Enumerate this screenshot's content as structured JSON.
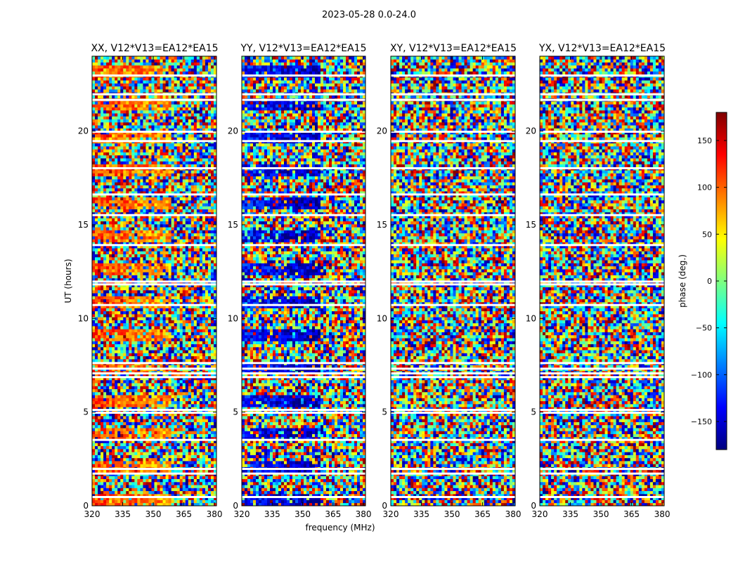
{
  "figure_title": "2023-05-28 0.0-24.0",
  "colors": {
    "colormap": [
      "#00007f",
      "#0000ff",
      "#007fff",
      "#00ffff",
      "#7fff7f",
      "#ffff00",
      "#ff7f00",
      "#ff0000",
      "#7f0000"
    ],
    "axis": "#000000",
    "gap": "#ffffff"
  },
  "chart_data": [
    {
      "type": "heatmap",
      "title": "XX, V12*V13=EA12*EA15",
      "xlabel": "",
      "ylabel": "UT (hours)",
      "xlim": [
        320,
        381
      ],
      "ylim": [
        0,
        24
      ],
      "xticks": [
        320,
        335,
        350,
        365,
        380
      ],
      "yticks": [
        0,
        5,
        10,
        15,
        20
      ],
      "texture_note": "low-freq coherent phase near +50..+150 deg (orange/yellow) in several bands; noisy elsewhere",
      "coherent_phase": 110
    },
    {
      "type": "heatmap",
      "title": "YY, V12*V13=EA12*EA15",
      "xlabel": "frequency (MHz)",
      "ylabel": "",
      "xlim": [
        320,
        381
      ],
      "ylim": [
        0,
        24
      ],
      "xticks": [
        320,
        335,
        350,
        365,
        380
      ],
      "yticks": [
        0,
        5,
        10,
        15,
        20
      ],
      "texture_note": "low-freq coherent phase near -130 deg (blue) in several bands; noisy elsewhere",
      "coherent_phase": -130
    },
    {
      "type": "heatmap",
      "title": "XY, V12*V13=EA12*EA15",
      "xlabel": "",
      "ylabel": "",
      "xlim": [
        320,
        381
      ],
      "ylim": [
        0,
        24
      ],
      "xticks": [
        320,
        335,
        350,
        365,
        380
      ],
      "yticks": [
        0,
        5,
        10,
        15,
        20
      ],
      "texture_note": "mostly random phase noise with horizontal gaps",
      "coherent_phase": null
    },
    {
      "type": "heatmap",
      "title": "YX, V12*V13=EA12*EA15",
      "xlabel": "",
      "ylabel": "",
      "xlim": [
        320,
        381
      ],
      "ylim": [
        0,
        24
      ],
      "xticks": [
        320,
        335,
        350,
        365,
        380
      ],
      "yticks": [
        0,
        5,
        10,
        15,
        20
      ],
      "texture_note": "mostly random phase noise with horizontal gaps",
      "coherent_phase": null
    }
  ],
  "colorbar": {
    "label": "phase (deg.)",
    "vmin": -180,
    "vmax": 180,
    "ticks": [
      150,
      100,
      50,
      0,
      -50,
      -100,
      -150
    ],
    "tick_labels": [
      "150",
      "100",
      "50",
      "0",
      "−50",
      "−100",
      "−150"
    ]
  },
  "time_gaps_hours": [
    0.45,
    1.7,
    1.95,
    3.5,
    4.95,
    5.1,
    6.85,
    7.05,
    7.3,
    7.6,
    10.7,
    11.8,
    11.95,
    13.9,
    15.5,
    16.6,
    18.0,
    19.45,
    19.95,
    21.65,
    21.95,
    22.95
  ]
}
